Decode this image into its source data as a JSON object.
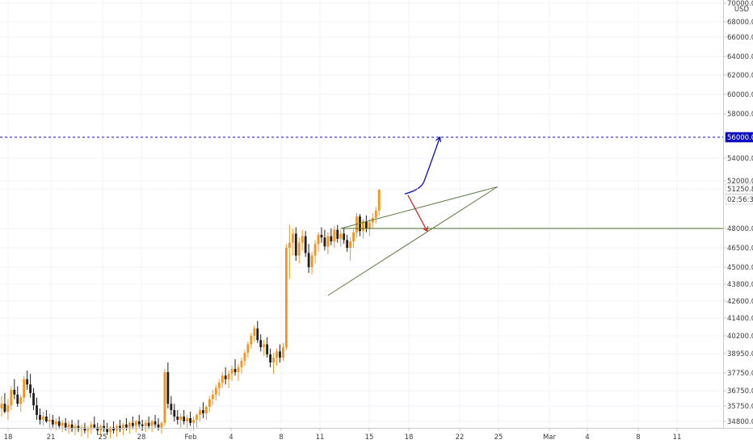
{
  "chart_data": {
    "type": "candlestick",
    "currency": "USD",
    "y_ticks": [
      "70000.00",
      "68000.00",
      "66000.00",
      "64000.00",
      "62000.00",
      "60000.00",
      "58000.00",
      "54000.00",
      "52000.00",
      "48000.00",
      "46500.00",
      "45000.00",
      "43800.00",
      "42600.00",
      "41400.00",
      "40200.00",
      "38950.00",
      "37750.00",
      "36750.00",
      "35750.00",
      "34800.00"
    ],
    "x_ticks": [
      "18",
      "21",
      "25",
      "28",
      "Feb",
      "4",
      "8",
      "11",
      "15",
      "18",
      "22",
      "25",
      "Mar",
      "4",
      "8",
      "11"
    ],
    "badges": [
      {
        "name": "target-level",
        "text": "56000.00",
        "bg": "#0d0dbf",
        "fg": "#ffffff"
      },
      {
        "name": "last-price",
        "text": "51250.82",
        "bg": "#ffffff",
        "fg": "#3b3b3b"
      },
      {
        "name": "countdown",
        "text": "02:56:34",
        "bg": "#ffffff",
        "fg": "#3b3b3b"
      }
    ],
    "levels": [
      {
        "name": "target",
        "price": 56000,
        "color": "#0d0dbf",
        "style": "dashed"
      },
      {
        "name": "support",
        "price": 48000,
        "color": "#4a6b2a",
        "style": "solid"
      }
    ],
    "colors": {
      "up": "#f7931a",
      "down": "#1f1f1f",
      "wedge": "#5a7a3a",
      "bull_arrow": "#0d0dbf",
      "bear_arrow": "#cc1b1b"
    },
    "candles": [
      [
        35200,
        36100,
        34700,
        35600
      ],
      [
        35600,
        36400,
        35100,
        35900
      ],
      [
        35900,
        36600,
        35300,
        35400
      ],
      [
        35400,
        36200,
        34900,
        35800
      ],
      [
        35800,
        37000,
        35500,
        36800
      ],
      [
        36800,
        37400,
        36200,
        36500
      ],
      [
        36500,
        37000,
        35700,
        35900
      ],
      [
        35900,
        36500,
        35400,
        36300
      ],
      [
        36300,
        37600,
        36000,
        37400
      ],
      [
        37400,
        37900,
        36800,
        37100
      ],
      [
        37100,
        37700,
        36300,
        36600
      ],
      [
        36600,
        36900,
        35500,
        35800
      ],
      [
        35800,
        36300,
        34900,
        35200
      ],
      [
        35200,
        35600,
        34600,
        34900
      ],
      [
        34900,
        35400,
        34500,
        35100
      ],
      [
        35100,
        35500,
        34700,
        34800
      ],
      [
        34800,
        35300,
        34300,
        34900
      ],
      [
        34900,
        35200,
        34400,
        34600
      ],
      [
        34600,
        35000,
        34200,
        34800
      ],
      [
        34800,
        35100,
        34300,
        34500
      ],
      [
        34500,
        34900,
        34100,
        34700
      ],
      [
        34700,
        35000,
        34200,
        34400
      ],
      [
        34400,
        34800,
        34000,
        34600
      ],
      [
        34600,
        34900,
        34100,
        34300
      ],
      [
        34300,
        34700,
        33900,
        34500
      ],
      [
        34500,
        34900,
        34100,
        34300
      ],
      [
        34300,
        34600,
        33800,
        34400
      ],
      [
        34400,
        34700,
        34000,
        34200
      ],
      [
        34200,
        34500,
        33700,
        34300
      ],
      [
        34300,
        34800,
        34000,
        34600
      ],
      [
        34600,
        35100,
        34300,
        34400
      ],
      [
        34400,
        34700,
        33900,
        34200
      ],
      [
        34200,
        34600,
        33800,
        34500
      ],
      [
        34500,
        34900,
        34100,
        34300
      ],
      [
        34300,
        34700,
        33900,
        34100
      ],
      [
        34100,
        34500,
        33700,
        34400
      ],
      [
        34400,
        34800,
        34000,
        34200
      ],
      [
        34200,
        34600,
        33800,
        34500
      ],
      [
        34500,
        34900,
        34100,
        34300
      ],
      [
        34300,
        34700,
        33900,
        34600
      ],
      [
        34600,
        35000,
        34200,
        34400
      ],
      [
        34400,
        34800,
        34000,
        34700
      ],
      [
        34700,
        35100,
        34300,
        34500
      ],
      [
        34500,
        34900,
        34100,
        34800
      ],
      [
        34800,
        35200,
        34400,
        34600
      ],
      [
        34600,
        34900,
        34200,
        34500
      ],
      [
        34500,
        34900,
        34100,
        34700
      ],
      [
        34700,
        35100,
        34300,
        34500
      ],
      [
        34500,
        34900,
        34100,
        34800
      ],
      [
        34800,
        35200,
        34400,
        34600
      ],
      [
        34600,
        35000,
        34200,
        34400
      ],
      [
        34400,
        34800,
        34000,
        34700
      ],
      [
        34700,
        38000,
        34500,
        37800
      ],
      [
        37800,
        38400,
        35600,
        35900
      ],
      [
        35900,
        36400,
        35200,
        35500
      ],
      [
        35500,
        35900,
        34800,
        35100
      ],
      [
        35100,
        35500,
        34600,
        34900
      ],
      [
        34900,
        35300,
        34400,
        35100
      ],
      [
        35100,
        35500,
        34600,
        34800
      ],
      [
        34800,
        35200,
        34300,
        35000
      ],
      [
        35000,
        35400,
        34500,
        34700
      ],
      [
        34700,
        35100,
        34200,
        34900
      ],
      [
        34900,
        35300,
        34400,
        35200
      ],
      [
        35200,
        35700,
        34800,
        35500
      ],
      [
        35500,
        36000,
        35000,
        35300
      ],
      [
        35300,
        35800,
        34900,
        35700
      ],
      [
        35700,
        36400,
        35400,
        36200
      ],
      [
        36200,
        36800,
        35800,
        36500
      ],
      [
        36500,
        37100,
        36100,
        36900
      ],
      [
        36900,
        37400,
        36400,
        37200
      ],
      [
        37200,
        37800,
        36900,
        37600
      ],
      [
        37600,
        38100,
        37100,
        37400
      ],
      [
        37400,
        37900,
        36900,
        37700
      ],
      [
        37700,
        38200,
        37300,
        38000
      ],
      [
        38000,
        38600,
        37600,
        37800
      ],
      [
        37800,
        38300,
        37300,
        38100
      ],
      [
        38100,
        38700,
        37700,
        38500
      ],
      [
        38500,
        39200,
        38200,
        39000
      ],
      [
        39000,
        39800,
        38700,
        39600
      ],
      [
        39600,
        40400,
        39300,
        40200
      ],
      [
        40200,
        40900,
        39800,
        40700
      ],
      [
        40700,
        41200,
        39700,
        39900
      ],
      [
        39900,
        40300,
        39100,
        39400
      ],
      [
        39400,
        39900,
        38800,
        39600
      ],
      [
        39600,
        40100,
        38700,
        38900
      ],
      [
        38900,
        39300,
        38100,
        38400
      ],
      [
        38400,
        39000,
        37700,
        38700
      ],
      [
        38700,
        39300,
        38200,
        39100
      ],
      [
        39100,
        39600,
        38400,
        38700
      ],
      [
        38700,
        39700,
        38500,
        39400
      ],
      [
        39400,
        46800,
        39200,
        46500
      ],
      [
        46500,
        48300,
        44200,
        46900
      ],
      [
        46900,
        48000,
        45900,
        47600
      ],
      [
        47600,
        48100,
        45500,
        45900
      ],
      [
        45900,
        47300,
        45300,
        46900
      ],
      [
        46900,
        47900,
        46300,
        47400
      ],
      [
        47400,
        47800,
        45800,
        46100
      ],
      [
        46100,
        46800,
        44600,
        45000
      ],
      [
        45000,
        46200,
        44500,
        45900
      ],
      [
        45900,
        47100,
        45300,
        46800
      ],
      [
        46800,
        47700,
        46200,
        47500
      ],
      [
        47500,
        48100,
        46900,
        47300
      ],
      [
        47300,
        47900,
        46300,
        46600
      ],
      [
        46600,
        47700,
        46000,
        47400
      ],
      [
        47400,
        48000,
        46700,
        47000
      ],
      [
        47000,
        48200,
        46500,
        47900
      ],
      [
        47900,
        48300,
        46900,
        47200
      ],
      [
        47200,
        47900,
        46600,
        47600
      ],
      [
        47600,
        48100,
        46800,
        47100
      ],
      [
        47100,
        47500,
        46200,
        46500
      ],
      [
        46500,
        47300,
        45500,
        47000
      ],
      [
        47000,
        47900,
        46500,
        47700
      ],
      [
        47700,
        49300,
        47300,
        49000
      ],
      [
        49000,
        49200,
        47400,
        47800
      ],
      [
        47800,
        48800,
        47200,
        48600
      ],
      [
        48600,
        49100,
        47700,
        48000
      ],
      [
        48000,
        48800,
        47400,
        48500
      ],
      [
        48500,
        49300,
        48000,
        48900
      ],
      [
        48900,
        49800,
        48400,
        49500
      ],
      [
        49500,
        51300,
        49100,
        51250.82
      ]
    ],
    "drawings": {
      "wedge_upper": [
        [
          107,
          48000
        ],
        [
          156,
          51500
        ]
      ],
      "wedge_lower": [
        [
          103,
          43000
        ],
        [
          156,
          51500
        ]
      ],
      "support_start_index": 107,
      "bull_arrow": {
        "from": [
          127,
          50900
        ],
        "via": [
          132,
          51800
        ],
        "to": [
          138,
          56000
        ]
      },
      "bear_arrow": {
        "from": [
          128,
          50800
        ],
        "to": [
          134,
          47800
        ]
      }
    }
  }
}
